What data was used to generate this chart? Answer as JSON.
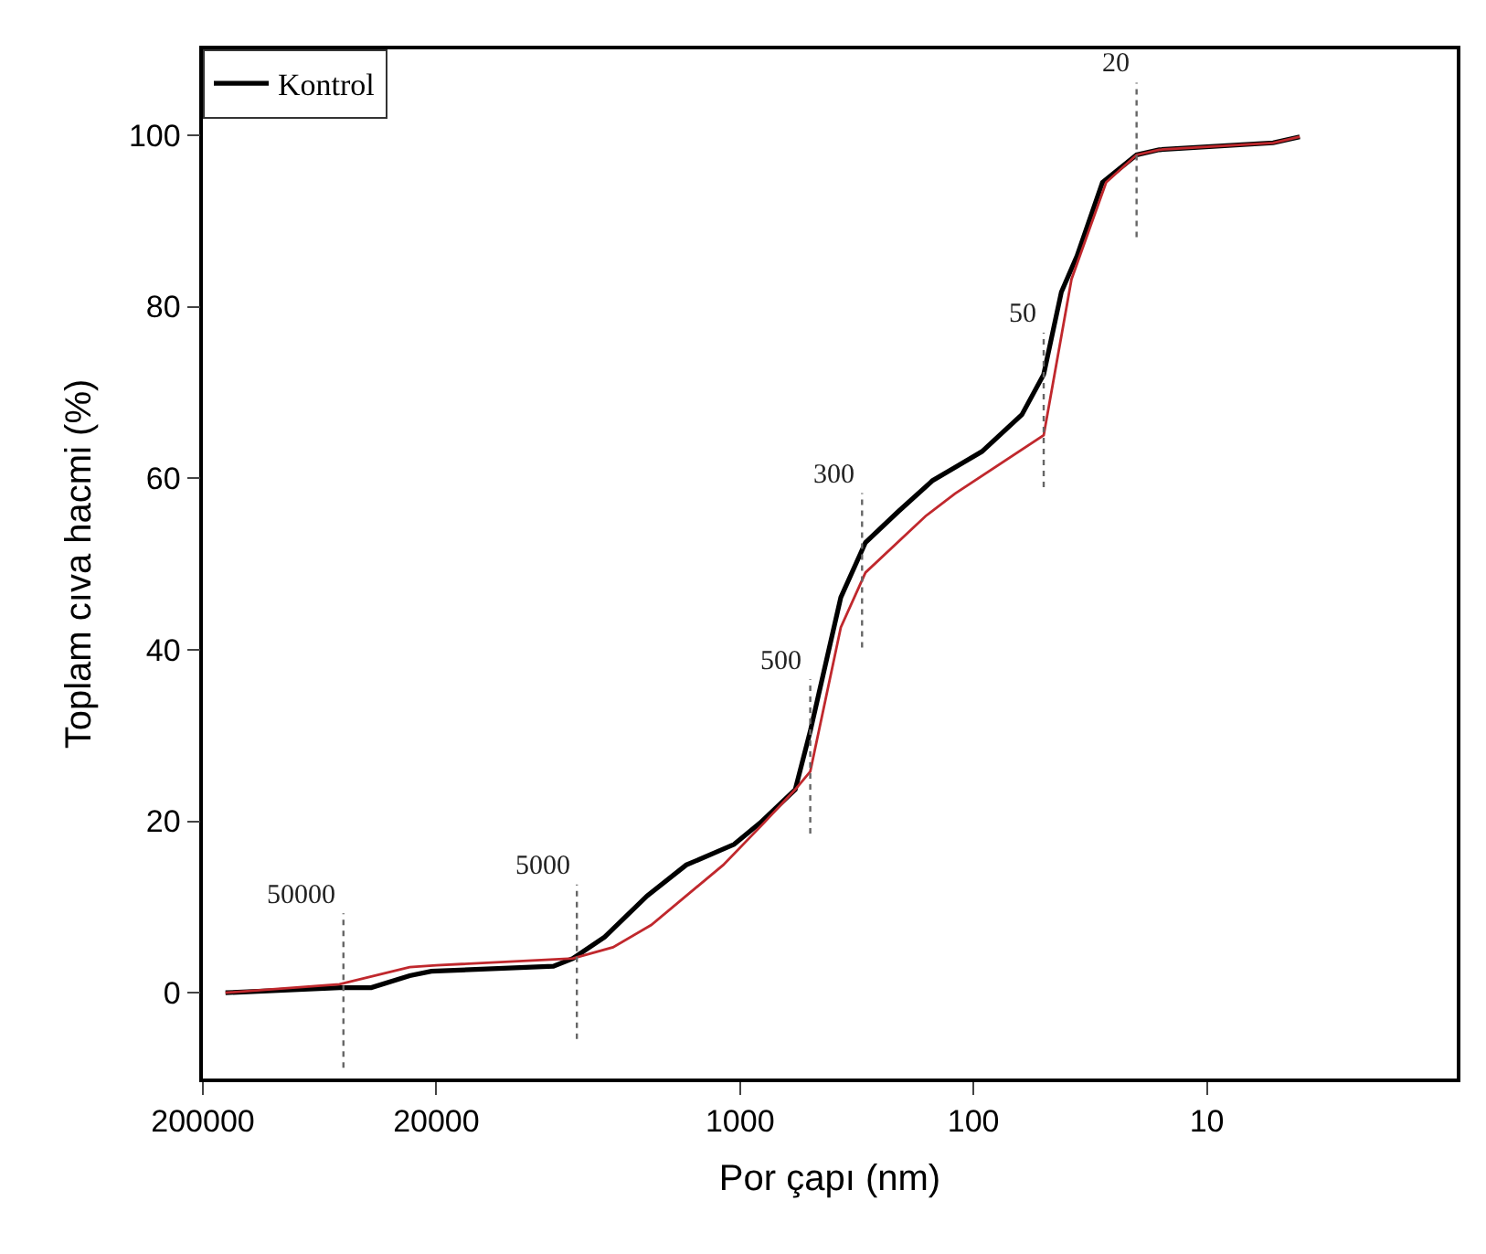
{
  "chart_data": {
    "type": "line",
    "xlabel": "Por çapı (nm)",
    "ylabel": "Toplam cıva hacmi (%)",
    "log": "x",
    "xlim": [
      200000,
      0.85
    ],
    "xticks": [
      200000,
      20000,
      1000,
      100,
      10
    ],
    "ylim": [
      -10,
      110
    ],
    "yticks": [
      0,
      20,
      40,
      60,
      80,
      100
    ],
    "legend": "top left",
    "line_style": "solid",
    "series": [
      {
        "name": "Kontrol",
        "color": "#000000",
        "x": [
          160000,
          52000,
          38000,
          26000,
          21000,
          6300,
          5200,
          3800,
          2500,
          1700,
          1060,
          820,
          580,
          500,
          370,
          290,
          210,
          150,
          92,
          62,
          50,
          42,
          36,
          28,
          20,
          16,
          5.2,
          4.0
        ],
        "values": [
          0,
          0.6,
          0.6,
          2.0,
          2.5,
          3.1,
          4.0,
          6.5,
          11.3,
          14.9,
          17.3,
          19.8,
          23.7,
          30.5,
          46.1,
          52.5,
          56.1,
          59.7,
          63.1,
          67.4,
          72.1,
          81.7,
          85.9,
          94.5,
          97.7,
          98.3,
          99.1,
          99.8
        ]
      },
      {
        "color": "#c0282d",
        "x": [
          160000,
          52000,
          26000,
          20000,
          5200,
          3500,
          2400,
          1700,
          1180,
          790,
          580,
          500,
          370,
          290,
          160,
          120,
          50,
          38,
          27,
          20,
          16,
          5.2,
          4.0
        ],
        "values": [
          0,
          1.0,
          3.0,
          3.2,
          4.0,
          5.3,
          7.9,
          11.3,
          14.9,
          19.8,
          23.7,
          25.8,
          42.6,
          49.0,
          55.6,
          58.2,
          65.0,
          83.2,
          94.5,
          97.7,
          98.3,
          99.1,
          99.8
        ]
      }
    ],
    "ref_lines": [
      {
        "axis": "x",
        "value": 50000,
        "label": "50000",
        "line_style": "dotted",
        "color": "#666666"
      },
      {
        "axis": "x",
        "value": 5000,
        "label": "5000",
        "line_style": "dotted",
        "color": "#666666"
      },
      {
        "axis": "x",
        "value": 500,
        "label": "500",
        "line_style": "dotted",
        "color": "#666666"
      },
      {
        "axis": "x",
        "value": 300,
        "label": "300",
        "line_style": "dotted",
        "color": "#666666"
      },
      {
        "axis": "x",
        "value": 50,
        "label": "50",
        "line_style": "dotted",
        "color": "#666666"
      },
      {
        "axis": "x",
        "value": 20,
        "label": "20",
        "line_style": "dotted",
        "color": "#666666"
      }
    ]
  }
}
